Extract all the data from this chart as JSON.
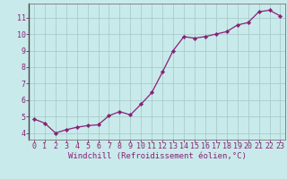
{
  "x": [
    0,
    1,
    2,
    3,
    4,
    5,
    6,
    7,
    8,
    9,
    10,
    11,
    12,
    13,
    14,
    15,
    16,
    17,
    18,
    19,
    20,
    21,
    22,
    23
  ],
  "y": [
    4.85,
    4.6,
    4.0,
    4.2,
    4.35,
    4.45,
    4.5,
    5.05,
    5.3,
    5.1,
    5.75,
    6.45,
    7.7,
    9.0,
    9.85,
    9.75,
    9.85,
    10.0,
    10.15,
    10.55,
    10.7,
    11.35,
    11.45,
    11.1
  ],
  "line_color": "#882277",
  "marker": "D",
  "marker_size": 2.2,
  "bg_color": "#c8eaea",
  "grid_color": "#aacccc",
  "xlabel": "Windchill (Refroidissement éolien,°C)",
  "xlabel_fontsize": 6.5,
  "ylabel_ticks": [
    4,
    5,
    6,
    7,
    8,
    9,
    10,
    11
  ],
  "xtick_labels": [
    "0",
    "1",
    "2",
    "3",
    "4",
    "5",
    "6",
    "7",
    "8",
    "9",
    "10",
    "11",
    "12",
    "13",
    "14",
    "15",
    "16",
    "17",
    "18",
    "19",
    "20",
    "21",
    "22",
    "23"
  ],
  "xlim": [
    -0.5,
    23.5
  ],
  "ylim": [
    3.6,
    11.85
  ],
  "spine_color": "#777777",
  "tick_color": "#882277",
  "tick_fontsize": 6.0,
  "xlabel_font": "monospace"
}
